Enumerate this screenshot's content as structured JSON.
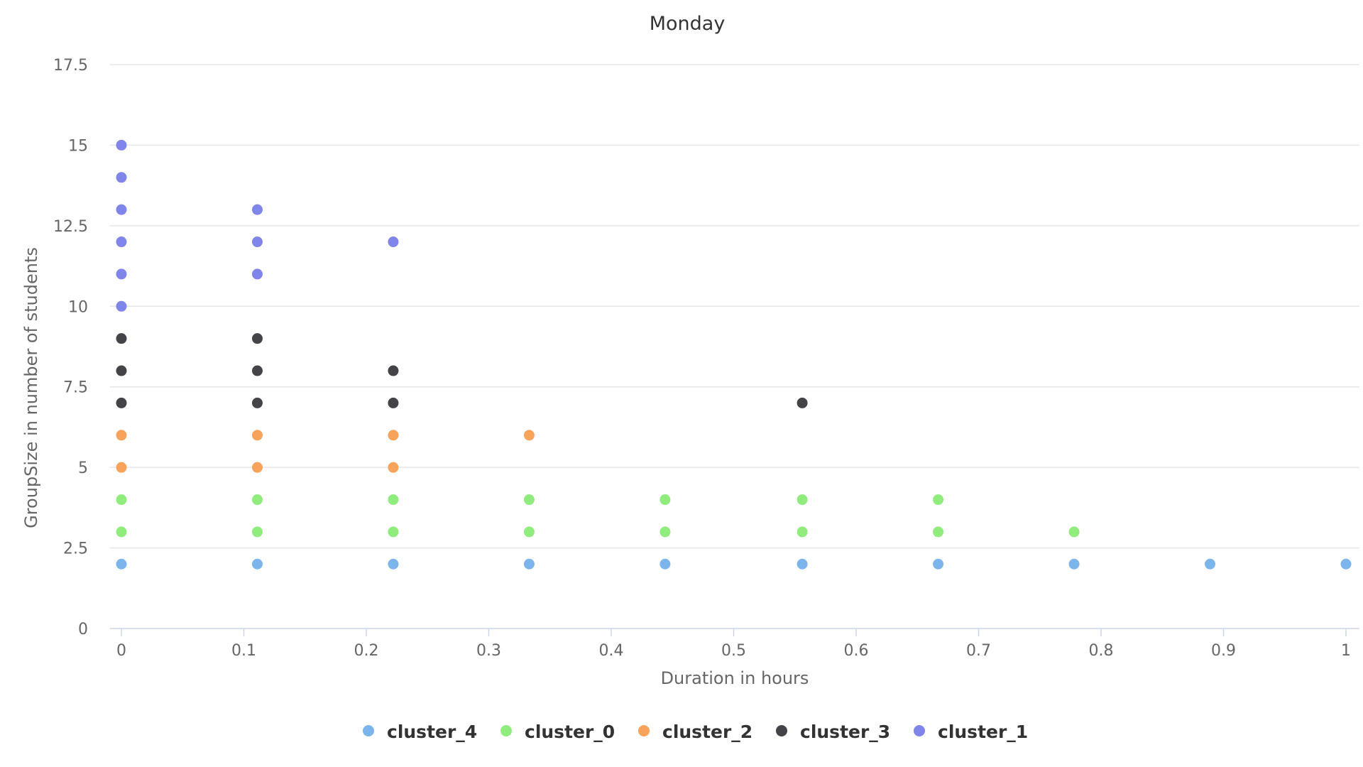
{
  "chart_data": {
    "type": "scatter",
    "title": "Monday",
    "xlabel": "Duration in hours",
    "ylabel": "GroupSize in number of students",
    "xlim": [
      -0.01,
      1.01
    ],
    "ylim": [
      0,
      17.5
    ],
    "xticks": [
      0,
      0.1,
      0.2,
      0.3,
      0.4,
      0.5,
      0.6,
      0.7,
      0.8,
      0.9,
      1
    ],
    "xtick_labels": [
      "0",
      "0.1",
      "0.2",
      "0.3",
      "0.4",
      "0.5",
      "0.6",
      "0.7",
      "0.8",
      "0.9",
      "1"
    ],
    "yticks": [
      0,
      2.5,
      5,
      7.5,
      10,
      12.5,
      15,
      17.5
    ],
    "ytick_labels": [
      "0",
      "2.5",
      "5",
      "7.5",
      "10",
      "12.5",
      "15",
      "17.5"
    ],
    "grid": true,
    "legend_position": "bottom-center",
    "series": [
      {
        "name": "cluster_4",
        "color": "#7cb5ec",
        "points": [
          [
            0,
            2
          ],
          [
            0.111,
            2
          ],
          [
            0.222,
            2
          ],
          [
            0.333,
            2
          ],
          [
            0.444,
            2
          ],
          [
            0.556,
            2
          ],
          [
            0.667,
            2
          ],
          [
            0.778,
            2
          ],
          [
            0.889,
            2
          ],
          [
            1.0,
            2
          ]
        ]
      },
      {
        "name": "cluster_0",
        "color": "#90ed7d",
        "points": [
          [
            0,
            3
          ],
          [
            0,
            4
          ],
          [
            0.111,
            3
          ],
          [
            0.111,
            4
          ],
          [
            0.222,
            3
          ],
          [
            0.222,
            4
          ],
          [
            0.333,
            3
          ],
          [
            0.333,
            4
          ],
          [
            0.444,
            3
          ],
          [
            0.444,
            4
          ],
          [
            0.556,
            3
          ],
          [
            0.556,
            4
          ],
          [
            0.667,
            3
          ],
          [
            0.667,
            4
          ],
          [
            0.778,
            3
          ]
        ]
      },
      {
        "name": "cluster_2",
        "color": "#f7a35c",
        "points": [
          [
            0,
            5
          ],
          [
            0,
            6
          ],
          [
            0.111,
            5
          ],
          [
            0.111,
            6
          ],
          [
            0.222,
            5
          ],
          [
            0.222,
            6
          ],
          [
            0.333,
            6
          ]
        ]
      },
      {
        "name": "cluster_3",
        "color": "#434348",
        "points": [
          [
            0,
            7
          ],
          [
            0,
            8
          ],
          [
            0,
            9
          ],
          [
            0.111,
            7
          ],
          [
            0.111,
            8
          ],
          [
            0.111,
            9
          ],
          [
            0.222,
            7
          ],
          [
            0.222,
            8
          ],
          [
            0.556,
            7
          ]
        ]
      },
      {
        "name": "cluster_1",
        "color": "#8085e9",
        "points": [
          [
            0,
            10
          ],
          [
            0,
            11
          ],
          [
            0,
            12
          ],
          [
            0,
            13
          ],
          [
            0,
            14
          ],
          [
            0,
            15
          ],
          [
            0.111,
            11
          ],
          [
            0.111,
            12
          ],
          [
            0.111,
            13
          ],
          [
            0.222,
            12
          ]
        ]
      }
    ]
  }
}
